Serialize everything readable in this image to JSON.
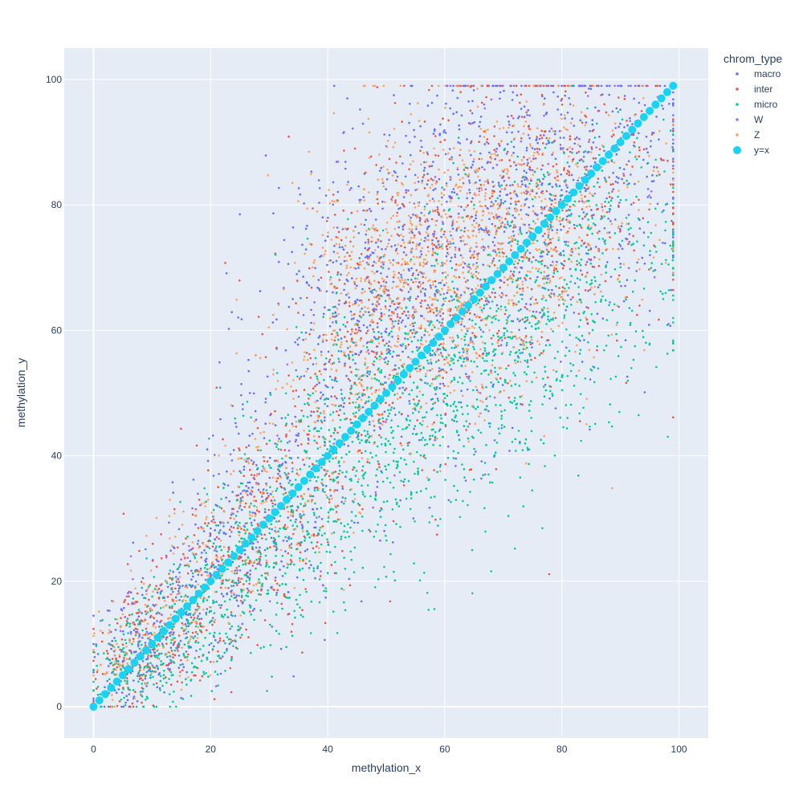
{
  "chart_data": {
    "type": "scatter",
    "title": "",
    "xlabel": "methylation_x",
    "ylabel": "methylation_y",
    "xlim": [
      -5,
      105
    ],
    "ylim": [
      -5,
      105
    ],
    "xticks": [
      0,
      20,
      40,
      60,
      80,
      100
    ],
    "yticks": [
      0,
      20,
      40,
      60,
      80,
      100
    ],
    "xtick_labels": [
      "0",
      "20",
      "40",
      "60",
      "80",
      "100"
    ],
    "ytick_labels": [
      "0",
      "20",
      "40",
      "60",
      "80",
      "100"
    ],
    "grid": true,
    "background": "#e5ecf6",
    "legend": {
      "title": "chrom_type",
      "placement": "top-right-outside",
      "entries": [
        "macro",
        "inter",
        "micro",
        "W",
        "Z",
        "y=x"
      ]
    },
    "series": [
      {
        "name": "macro",
        "color": "#636efa",
        "marker_size": 2,
        "description": "dense cloud along the diagonal; representative points",
        "points": [
          [
            5,
            4
          ],
          [
            8,
            10
          ],
          [
            10,
            8
          ],
          [
            12,
            14
          ],
          [
            15,
            12
          ],
          [
            18,
            20
          ],
          [
            20,
            18
          ],
          [
            22,
            26
          ],
          [
            25,
            30
          ],
          [
            28,
            24
          ],
          [
            30,
            36
          ],
          [
            32,
            28
          ],
          [
            35,
            42
          ],
          [
            38,
            34
          ],
          [
            40,
            50
          ],
          [
            42,
            60
          ],
          [
            44,
            66
          ],
          [
            45,
            56
          ],
          [
            47,
            70
          ],
          [
            48,
            62
          ],
          [
            50,
            76
          ],
          [
            52,
            58
          ],
          [
            54,
            72
          ],
          [
            55,
            66
          ],
          [
            57,
            80
          ],
          [
            58,
            52
          ],
          [
            60,
            74
          ],
          [
            62,
            84
          ],
          [
            63,
            68
          ],
          [
            65,
            78
          ],
          [
            67,
            86
          ],
          [
            68,
            60
          ],
          [
            70,
            82
          ],
          [
            72,
            88
          ],
          [
            74,
            70
          ],
          [
            75,
            84
          ],
          [
            77,
            90
          ],
          [
            78,
            64
          ],
          [
            80,
            86
          ],
          [
            82,
            92
          ],
          [
            84,
            78
          ],
          [
            85,
            88
          ],
          [
            87,
            84
          ],
          [
            88,
            92
          ],
          [
            90,
            88
          ]
        ]
      },
      {
        "name": "inter",
        "color": "#ef553b",
        "marker_size": 2,
        "points": [
          [
            4,
            6
          ],
          [
            7,
            11
          ],
          [
            9,
            7
          ],
          [
            13,
            16
          ],
          [
            16,
            11
          ],
          [
            19,
            22
          ],
          [
            21,
            15
          ],
          [
            24,
            28
          ],
          [
            27,
            22
          ],
          [
            29,
            34
          ],
          [
            33,
            26
          ],
          [
            36,
            44
          ],
          [
            39,
            32
          ],
          [
            41,
            54
          ],
          [
            43,
            48
          ],
          [
            46,
            64
          ],
          [
            49,
            58
          ],
          [
            51,
            72
          ],
          [
            53,
            50
          ],
          [
            56,
            68
          ],
          [
            59,
            78
          ],
          [
            61,
            56
          ],
          [
            64,
            74
          ],
          [
            66,
            80
          ],
          [
            69,
            66
          ],
          [
            71,
            82
          ],
          [
            73,
            76
          ],
          [
            76,
            86
          ],
          [
            79,
            72
          ],
          [
            81,
            84
          ],
          [
            83,
            80
          ],
          [
            86,
            86
          ],
          [
            89,
            82
          ]
        ]
      },
      {
        "name": "micro",
        "color": "#00cc96",
        "marker_size": 2,
        "points": [
          [
            6,
            5
          ],
          [
            9,
            6
          ],
          [
            11,
            9
          ],
          [
            14,
            10
          ],
          [
            17,
            13
          ],
          [
            20,
            15
          ],
          [
            23,
            18
          ],
          [
            26,
            20
          ],
          [
            29,
            22
          ],
          [
            31,
            25
          ],
          [
            34,
            28
          ],
          [
            37,
            32
          ],
          [
            40,
            35
          ],
          [
            42,
            38
          ],
          [
            44,
            40
          ],
          [
            46,
            44
          ],
          [
            48,
            42
          ],
          [
            50,
            46
          ],
          [
            52,
            44
          ],
          [
            54,
            48
          ],
          [
            56,
            50
          ],
          [
            58,
            46
          ],
          [
            60,
            52
          ],
          [
            62,
            54
          ],
          [
            64,
            50
          ],
          [
            66,
            58
          ],
          [
            68,
            56
          ],
          [
            70,
            60
          ],
          [
            72,
            62
          ],
          [
            74,
            64
          ],
          [
            76,
            66
          ],
          [
            78,
            68
          ],
          [
            80,
            70
          ],
          [
            82,
            72
          ],
          [
            84,
            74
          ],
          [
            86,
            76
          ],
          [
            88,
            78
          ]
        ]
      },
      {
        "name": "W",
        "color": "#ab63fa",
        "marker_size": 2,
        "points": [
          [
            10,
            12
          ],
          [
            20,
            22
          ],
          [
            30,
            33
          ],
          [
            40,
            46
          ],
          [
            50,
            60
          ],
          [
            60,
            70
          ],
          [
            70,
            80
          ],
          [
            80,
            88
          ],
          [
            88,
            93
          ]
        ]
      },
      {
        "name": "Z",
        "color": "#ffa15a",
        "marker_size": 2,
        "points": [
          [
            5,
            7
          ],
          [
            10,
            12
          ],
          [
            15,
            16
          ],
          [
            20,
            21
          ],
          [
            25,
            26
          ],
          [
            30,
            31
          ],
          [
            35,
            38
          ],
          [
            40,
            45
          ],
          [
            45,
            54
          ],
          [
            48,
            60
          ],
          [
            50,
            64
          ],
          [
            52,
            68
          ],
          [
            54,
            70
          ],
          [
            55,
            62
          ],
          [
            56,
            72
          ],
          [
            58,
            66
          ],
          [
            59,
            74
          ],
          [
            60,
            68
          ],
          [
            61,
            64
          ],
          [
            62,
            72
          ],
          [
            63,
            70
          ],
          [
            64,
            66
          ],
          [
            65,
            74
          ],
          [
            66,
            68
          ],
          [
            67,
            76
          ],
          [
            68,
            72
          ],
          [
            70,
            74
          ],
          [
            72,
            78
          ],
          [
            74,
            80
          ],
          [
            76,
            82
          ],
          [
            78,
            84
          ],
          [
            80,
            82
          ]
        ]
      },
      {
        "name": "y=x",
        "color": "#19d3f3",
        "marker_size": 10,
        "x": [
          0,
          1,
          2,
          3,
          4,
          5,
          6,
          7,
          8,
          9,
          10,
          11,
          12,
          13,
          14,
          15,
          16,
          17,
          18,
          19,
          20,
          21,
          22,
          23,
          24,
          25,
          26,
          27,
          28,
          29,
          30,
          31,
          32,
          33,
          34,
          35,
          36,
          37,
          38,
          39,
          40,
          41,
          42,
          43,
          44,
          45,
          46,
          47,
          48,
          49,
          50,
          51,
          52,
          53,
          54,
          55,
          56,
          57,
          58,
          59,
          60,
          61,
          62,
          63,
          64,
          65,
          66,
          67,
          68,
          69,
          70,
          71,
          72,
          73,
          74,
          75,
          76,
          77,
          78,
          79,
          80,
          81,
          82,
          83,
          84,
          85,
          86,
          87,
          88,
          89,
          90,
          91,
          92,
          93,
          94,
          95,
          96,
          97,
          98,
          99
        ],
        "y": [
          0,
          1,
          2,
          3,
          4,
          5,
          6,
          7,
          8,
          9,
          10,
          11,
          12,
          13,
          14,
          15,
          16,
          17,
          18,
          19,
          20,
          21,
          22,
          23,
          24,
          25,
          26,
          27,
          28,
          29,
          30,
          31,
          32,
          33,
          34,
          35,
          36,
          37,
          38,
          39,
          40,
          41,
          42,
          43,
          44,
          45,
          46,
          47,
          48,
          49,
          50,
          51,
          52,
          53,
          54,
          55,
          56,
          57,
          58,
          59,
          60,
          61,
          62,
          63,
          64,
          65,
          66,
          67,
          68,
          69,
          70,
          71,
          72,
          73,
          74,
          75,
          76,
          77,
          78,
          79,
          80,
          81,
          82,
          83,
          84,
          85,
          86,
          87,
          88,
          89,
          90,
          91,
          92,
          93,
          94,
          95,
          96,
          97,
          98,
          99
        ]
      }
    ]
  }
}
